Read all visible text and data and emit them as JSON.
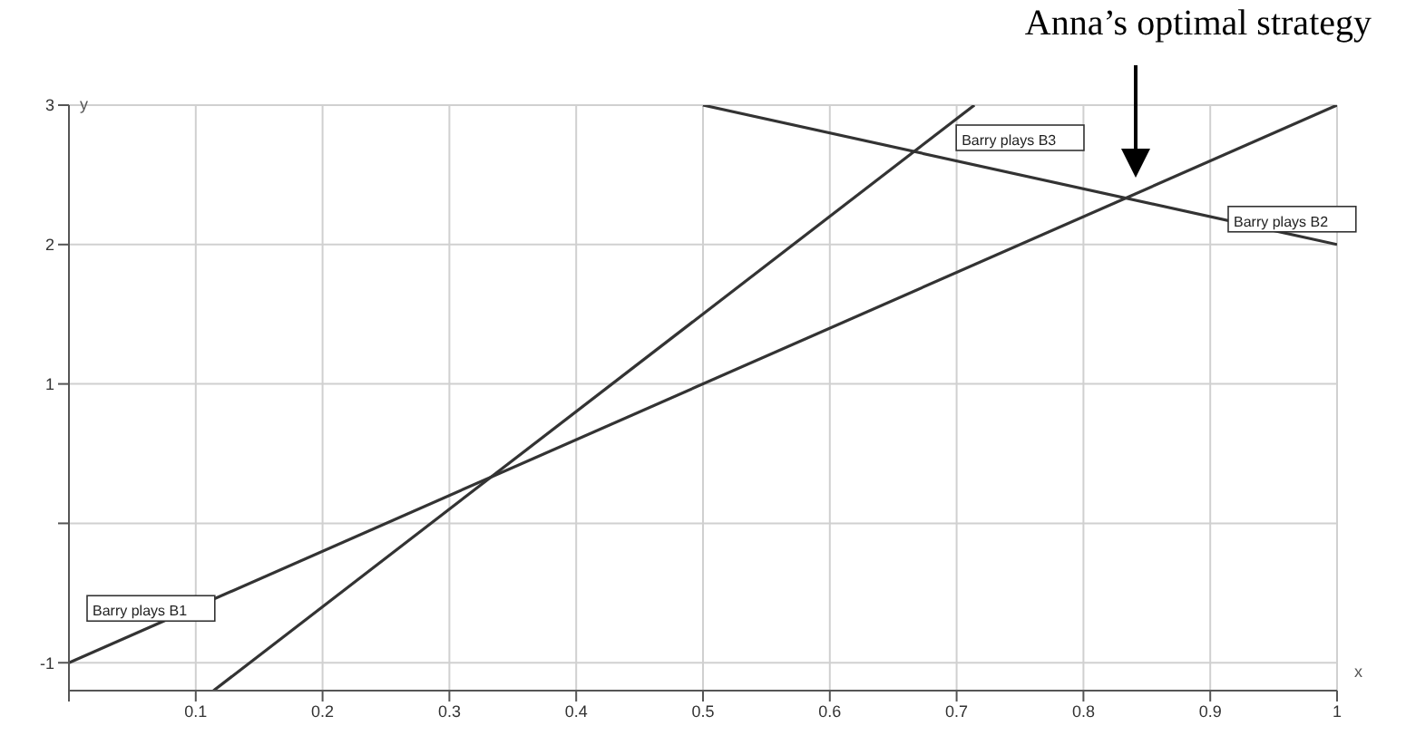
{
  "chart_data": {
    "type": "line",
    "xlabel": "x",
    "ylabel": "y",
    "series": [
      {
        "name": "Barry plays B1",
        "color": "#333333",
        "x": [
          0,
          1
        ],
        "values": [
          -1,
          3
        ]
      },
      {
        "name": "Barry plays B2",
        "color": "#333333",
        "x": [
          0.5,
          1
        ],
        "values": [
          3,
          2
        ]
      },
      {
        "name": "Barry plays B3",
        "color": "#333333",
        "x": [
          0.114,
          0.714
        ],
        "values": [
          -1.2,
          3
        ]
      }
    ],
    "xlim": [
      0,
      1
    ],
    "xticks": [
      {
        "value": 0,
        "label": null
      },
      0.1,
      0.2,
      0.3,
      0.4,
      0.5,
      0.6,
      0.7,
      0.8,
      0.9,
      1
    ],
    "ylim": [
      -1.2,
      3
    ],
    "yticks": [
      -1,
      {
        "value": 0,
        "label": null
      },
      1,
      2,
      3
    ],
    "grid": true,
    "legend": false,
    "marker": "none",
    "line_style": "solid",
    "annotations": [
      "Anna’s optimal strategy"
    ]
  }
}
